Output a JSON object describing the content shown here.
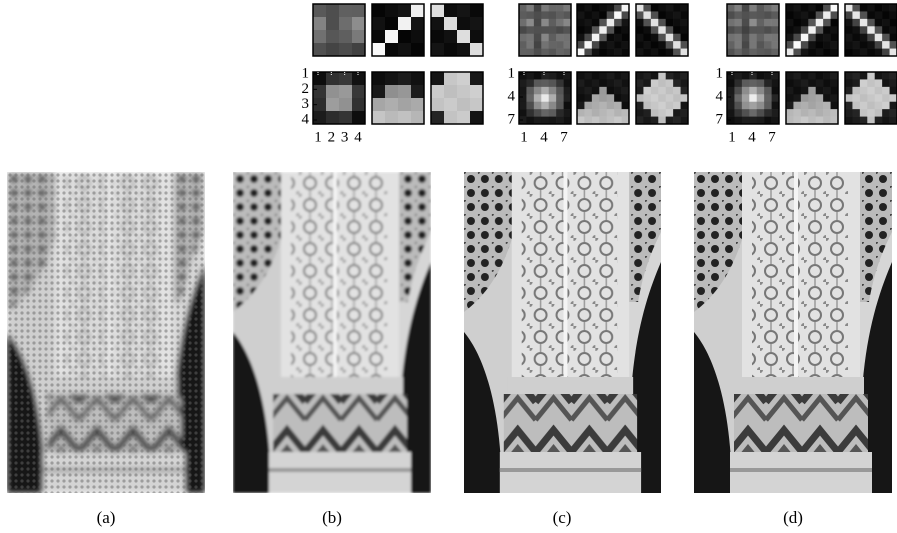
{
  "panels": [
    {
      "caption": "(a)"
    },
    {
      "caption": "(b)",
      "y_ticks": [
        "1",
        "2",
        "3",
        "4"
      ],
      "x_ticks": [
        "1",
        "2",
        "3",
        "4"
      ]
    },
    {
      "caption": "(c)",
      "y_ticks": [
        "1",
        "4",
        "7"
      ],
      "x_ticks": [
        "1",
        "4",
        "7"
      ]
    },
    {
      "caption": "(d)",
      "y_ticks": [
        "1",
        "4",
        "7"
      ],
      "x_ticks": [
        "1",
        "4",
        "7"
      ]
    }
  ]
}
